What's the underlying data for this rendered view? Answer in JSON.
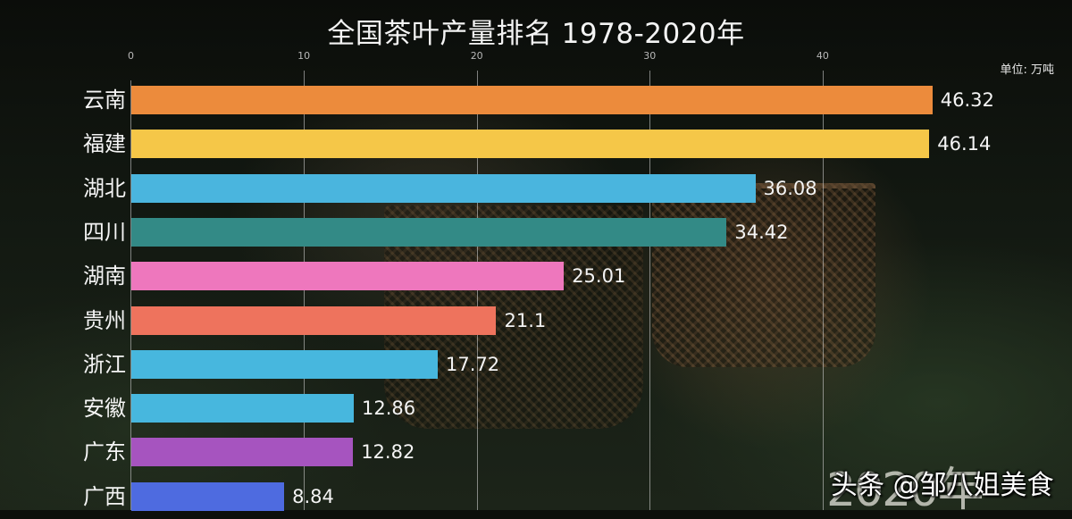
{
  "header": {
    "title": "全国茶叶产量排名 1978-2020年",
    "unit": "单位: 万吨"
  },
  "axis": {
    "ticks": [
      "0",
      "10",
      "20",
      "30",
      "40"
    ],
    "tick_values": [
      0,
      10,
      20,
      30,
      40
    ]
  },
  "rows": [
    {
      "label": "云南",
      "value": "46.32",
      "color": "#EC8B3C"
    },
    {
      "label": "福建",
      "value": "46.14",
      "color": "#F5C748"
    },
    {
      "label": "湖北",
      "value": "36.08",
      "color": "#4AB5DE"
    },
    {
      "label": "四川",
      "value": "34.42",
      "color": "#338A86"
    },
    {
      "label": "湖南",
      "value": "25.01",
      "color": "#EE77BD"
    },
    {
      "label": "贵州",
      "value": "21.1",
      "color": "#EE735D"
    },
    {
      "label": "浙江",
      "value": "17.72",
      "color": "#47B7DE"
    },
    {
      "label": "安徽",
      "value": "12.86",
      "color": "#47B7DE"
    },
    {
      "label": "广东",
      "value": "12.82",
      "color": "#A654BF"
    },
    {
      "label": "广西",
      "value": "8.84",
      "color": "#4E6BE0"
    }
  ],
  "overlay": {
    "year": "2020年",
    "credit": "头条 @邹八姐美食"
  },
  "chart_data": {
    "type": "bar",
    "orientation": "horizontal",
    "title": "全国茶叶产量排名 1978-2020年",
    "xlabel": "",
    "ylabel": "",
    "unit": "单位: 万吨",
    "categories": [
      "云南",
      "福建",
      "湖北",
      "四川",
      "湖南",
      "贵州",
      "浙江",
      "安徽",
      "广东",
      "广西"
    ],
    "values": [
      46.32,
      46.14,
      36.08,
      34.42,
      25.01,
      21.1,
      17.72,
      12.86,
      12.82,
      8.84
    ],
    "colors": [
      "#EC8B3C",
      "#F5C748",
      "#4AB5DE",
      "#338A86",
      "#EE77BD",
      "#EE735D",
      "#47B7DE",
      "#47B7DE",
      "#A654BF",
      "#4E6BE0"
    ],
    "xticks": [
      0,
      10,
      20,
      30,
      40
    ],
    "xlim": [
      0,
      50
    ],
    "grid": true,
    "legend": false,
    "annotation": "2020年"
  }
}
